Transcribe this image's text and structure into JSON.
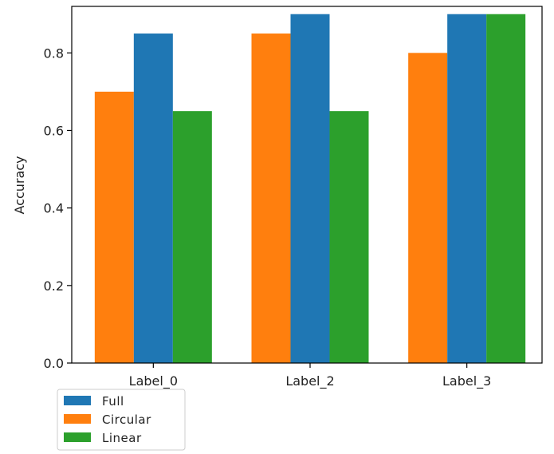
{
  "chart_data": {
    "type": "bar",
    "categories": [
      "Label_0",
      "Label_2",
      "Label_3"
    ],
    "series": [
      {
        "name": "Circular",
        "color": "#ff7f0e",
        "values": [
          0.7,
          0.85,
          0.8
        ]
      },
      {
        "name": "Full",
        "color": "#1f77b4",
        "values": [
          0.85,
          0.9,
          0.9
        ]
      },
      {
        "name": "Linear",
        "color": "#2ca02c",
        "values": [
          0.65,
          0.65,
          0.9
        ]
      }
    ],
    "legend_order": [
      "Full",
      "Circular",
      "Linear"
    ],
    "title": "",
    "xlabel": "",
    "ylabel": "Accuracy",
    "ylim": [
      0,
      0.92
    ],
    "yticks": [
      0.0,
      0.2,
      0.4,
      0.6,
      0.8
    ],
    "ytick_labels": [
      "0.0",
      "0.2",
      "0.4",
      "0.6",
      "0.8"
    ],
    "grid": false,
    "legend_position": "below-left"
  }
}
